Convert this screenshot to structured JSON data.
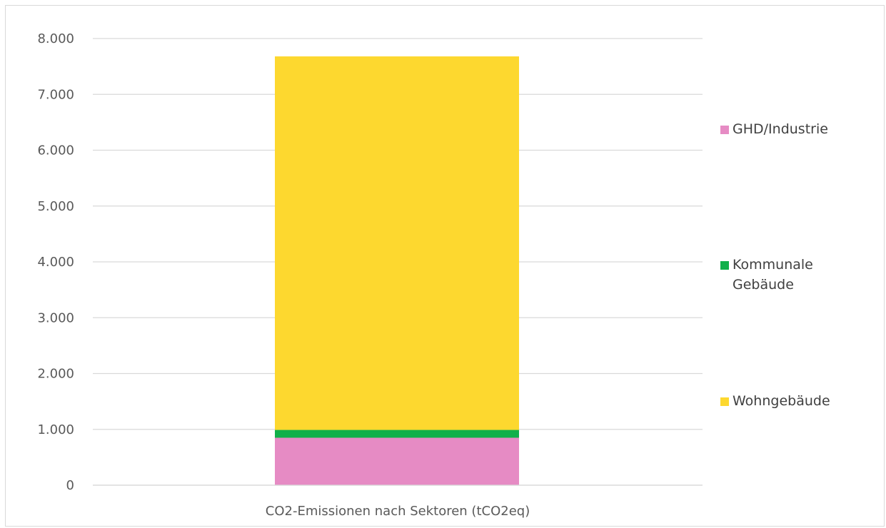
{
  "chart_data": {
    "type": "bar",
    "stacked": true,
    "categories": [
      "CO2-Emissionen nach Sektoren (tCO2eq)"
    ],
    "series": [
      {
        "name": "GHD/Industrie",
        "values": [
          850
        ],
        "color": "#e68bc4"
      },
      {
        "name": "Kommunale Gebäude",
        "values": [
          140
        ],
        "color": "#10b04a"
      },
      {
        "name": "Wohngebäude",
        "values": [
          6690
        ],
        "color": "#fdd82f"
      }
    ],
    "ylim": [
      0,
      8000
    ],
    "yticks": [
      "0",
      "1.000",
      "2.000",
      "3.000",
      "4.000",
      "5.000",
      "6.000",
      "7.000",
      "8.000"
    ],
    "ytick_values": [
      0,
      1000,
      2000,
      3000,
      4000,
      5000,
      6000,
      7000,
      8000
    ],
    "grid": true,
    "legend_position": "right",
    "legend": [
      {
        "label_lines": [
          "GHD/Industrie"
        ]
      },
      {
        "label_lines": [
          "Kommunale",
          "Gebäude"
        ]
      },
      {
        "label_lines": [
          "Wohngebäude"
        ]
      }
    ],
    "gridline_color": "#d9d9d9"
  }
}
